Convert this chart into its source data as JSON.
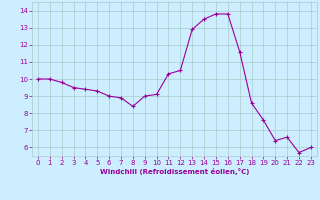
{
  "x": [
    0,
    1,
    2,
    3,
    4,
    5,
    6,
    7,
    8,
    9,
    10,
    11,
    12,
    13,
    14,
    15,
    16,
    17,
    18,
    19,
    20,
    21,
    22,
    23
  ],
  "y": [
    10.0,
    10.0,
    9.8,
    9.5,
    9.4,
    9.3,
    9.0,
    8.9,
    8.4,
    9.0,
    9.1,
    10.3,
    10.5,
    12.9,
    13.5,
    13.8,
    13.8,
    11.6,
    8.6,
    7.6,
    6.4,
    6.6,
    5.7,
    6.0
  ],
  "line_color": "#990099",
  "marker": "+",
  "marker_size": 3,
  "marker_lw": 0.8,
  "line_width": 0.8,
  "bg_color": "#cceeff",
  "grid_color": "#aacccc",
  "xlabel": "Windchill (Refroidissement éolien,°C)",
  "xlabel_color": "#990099",
  "tick_color": "#990099",
  "label_color": "#990099",
  "ylim": [
    5.5,
    14.5
  ],
  "xlim": [
    -0.5,
    23.5
  ],
  "yticks": [
    6,
    7,
    8,
    9,
    10,
    11,
    12,
    13,
    14
  ],
  "xticks": [
    0,
    1,
    2,
    3,
    4,
    5,
    6,
    7,
    8,
    9,
    10,
    11,
    12,
    13,
    14,
    15,
    16,
    17,
    18,
    19,
    20,
    21,
    22,
    23
  ],
  "tick_fontsize": 5,
  "xlabel_fontsize": 5,
  "xlabel_fontweight": "bold"
}
